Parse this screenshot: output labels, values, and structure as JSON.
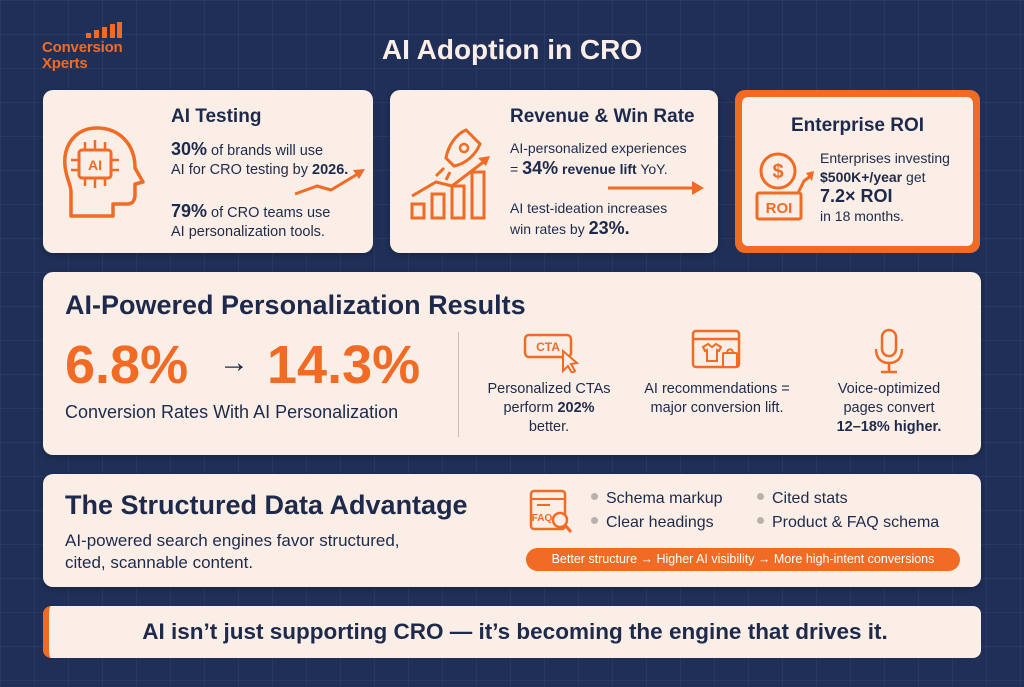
{
  "logo": {
    "line1": "Conversion",
    "line2": "Xperts"
  },
  "title": "AI Adoption in CRO",
  "card_ai_testing": {
    "title": "AI Testing",
    "icon_label": "AI",
    "stat1_value": "30%",
    "stat1_text_a": " of brands will use",
    "stat1_text_b": "AI for CRO testing by ",
    "stat1_year": "2026.",
    "stat2_value": "79%",
    "stat2_text_a": " of CRO teams use",
    "stat2_text_b": "AI personalization tools."
  },
  "card_revenue": {
    "title": "Revenue & Win Rate",
    "line1": "AI-personalized experiences",
    "line2_prefix": "= ",
    "line2_value": "34%",
    "line2_bold": " revenue lift",
    "line2_suffix": " YoY.",
    "line3": "AI test-ideation increases",
    "line4_prefix": "win rates by ",
    "line4_value": "23%."
  },
  "card_enterprise": {
    "title": "Enterprise ROI",
    "icon_label": "ROI",
    "line1": "Enterprises investing",
    "line2_bold": "$500K+/year",
    "line2_suffix": " get",
    "line3": "7.2× ROI",
    "line4": "in 18 months."
  },
  "personalization": {
    "title": "AI-Powered Personalization Results",
    "from_value": "6.8%",
    "arrow": "→",
    "to_value": "14.3%",
    "subtitle": "Conversion Rates With AI Personalization",
    "features": [
      {
        "icon": "cta-cursor-icon",
        "icon_text": "CTA",
        "line1": "Personalized CTAs",
        "line2_prefix": "perform ",
        "line2_bold": "202%",
        "line3": "better."
      },
      {
        "icon": "shopping-recommendation-icon",
        "line1": "AI recommendations =",
        "line2": "major conversion lift."
      },
      {
        "icon": "microphone-icon",
        "line1": "Voice-optimized",
        "line2": "pages convert",
        "line3_bold": "12–18% higher."
      }
    ]
  },
  "structured": {
    "title": "The Structured Data Advantage",
    "subtitle_line1": "AI-powered search engines favor structured,",
    "subtitle_line2": "cited, scannable content.",
    "icon": "faq-search-icon",
    "icon_text": "FAQ",
    "bullets": [
      "Schema markup",
      "Cited stats",
      "Clear headings",
      "Product & FAQ schema"
    ],
    "pill": "Better structure → Higher AI visibility → More high-intent conversions"
  },
  "banner": "AI isn’t just supporting CRO — it’s becoming the engine that drives it.",
  "colors": {
    "background": "#1f2f57",
    "accent": "#f26b24",
    "card": "#fbeee6",
    "text": "#1d2a4b"
  }
}
